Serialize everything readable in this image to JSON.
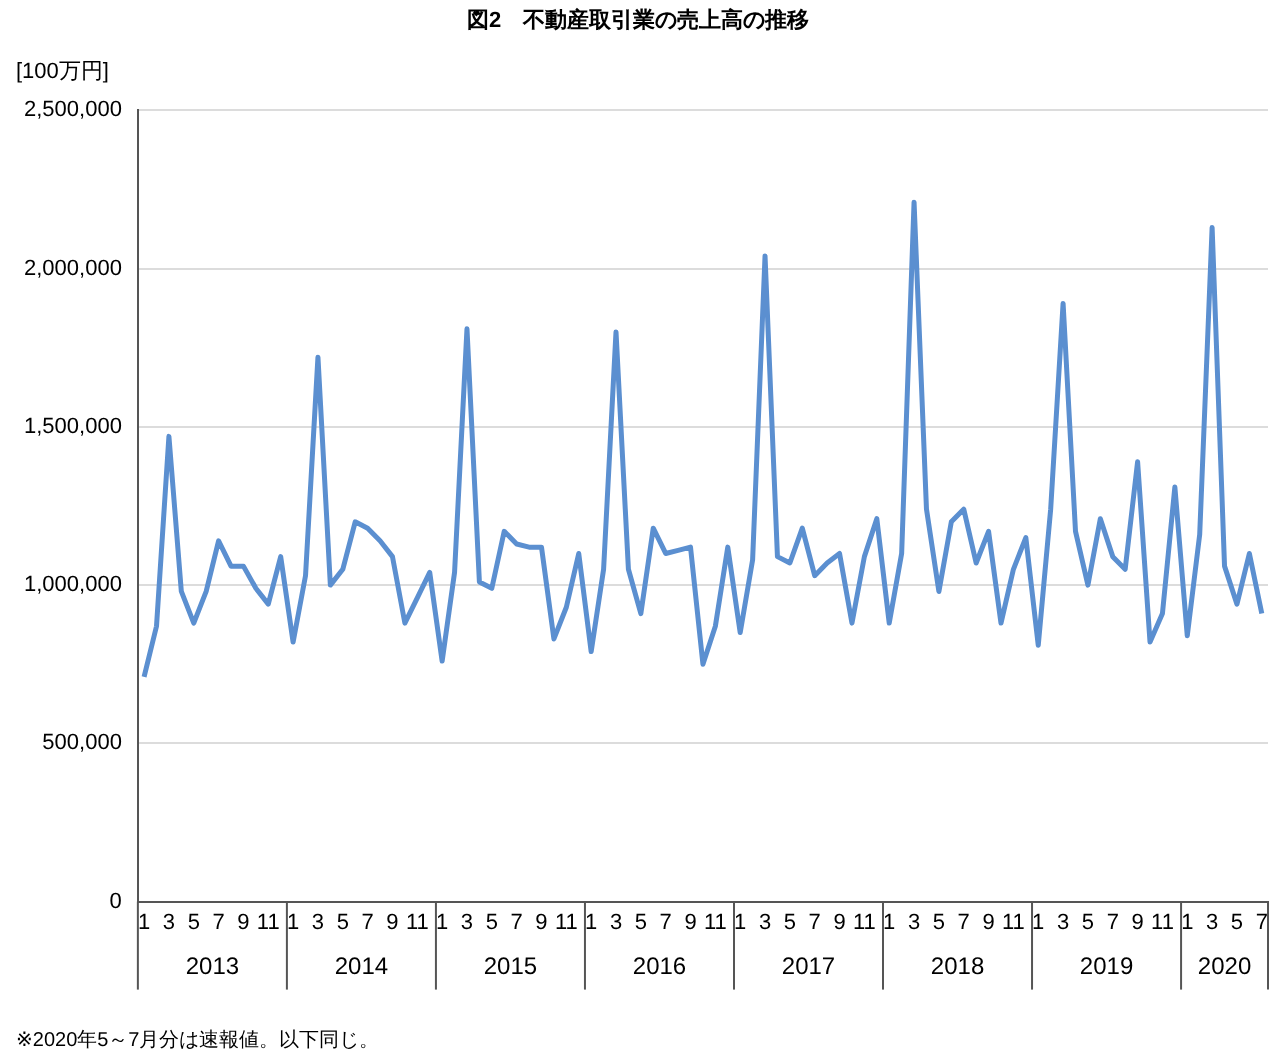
{
  "chart_data": {
    "type": "line",
    "title": "図2　不動産取引業の売上高の推移",
    "ylabel": "[100万円]",
    "categories": [
      "1",
      null,
      "3",
      null,
      "5",
      null,
      "7",
      null,
      "9",
      null,
      "11",
      null,
      "1",
      null,
      "3",
      null,
      "5",
      null,
      "7",
      null,
      "9",
      null,
      "11",
      null,
      "1",
      null,
      "3",
      null,
      "5",
      null,
      "7",
      null,
      "9",
      null,
      "11",
      null,
      "1",
      null,
      "3",
      null,
      "5",
      null,
      "7",
      null,
      "9",
      null,
      "11",
      null,
      "1",
      null,
      "3",
      null,
      "5",
      null,
      "7",
      null,
      "9",
      null,
      "11",
      null,
      "1",
      null,
      "3",
      null,
      "5",
      null,
      "7",
      null,
      "9",
      null,
      "11",
      null,
      "1",
      null,
      "3",
      null,
      "5",
      null,
      "7",
      null,
      "9",
      null,
      "11",
      null,
      "1",
      null,
      "3",
      null,
      "5",
      null,
      "7"
    ],
    "series": [
      {
        "color": "#5b8fd0",
        "values": [
          710000,
          870000,
          1470000,
          980000,
          880000,
          980000,
          1140000,
          1060000,
          1060000,
          990000,
          940000,
          1090000,
          820000,
          1030000,
          1720000,
          1000000,
          1050000,
          1200000,
          1180000,
          1140000,
          1090000,
          880000,
          960000,
          1040000,
          760000,
          1040000,
          1810000,
          1010000,
          990000,
          1170000,
          1130000,
          1120000,
          1120000,
          830000,
          930000,
          1100000,
          790000,
          1050000,
          1800000,
          1050000,
          910000,
          1180000,
          1100000,
          1110000,
          1120000,
          750000,
          870000,
          1120000,
          850000,
          1080000,
          2040000,
          1090000,
          1070000,
          1180000,
          1030000,
          1070000,
          1100000,
          880000,
          1090000,
          1210000,
          880000,
          1100000,
          2210000,
          1240000,
          980000,
          1200000,
          1240000,
          1070000,
          1170000,
          880000,
          1050000,
          1150000,
          810000,
          1240000,
          1890000,
          1170000,
          1000000,
          1210000,
          1090000,
          1050000,
          1390000,
          820000,
          910000,
          1310000,
          840000,
          1160000,
          2130000,
          1060000,
          940000,
          1100000,
          910000
        ]
      }
    ],
    "ylim": [
      0,
      2500000
    ],
    "yticks": [
      0,
      {
        "value": 500000,
        "label": "500,000"
      },
      {
        "value": 1000000,
        "label": "1,000,000"
      },
      {
        "value": 1500000,
        "label": "1,500,000"
      },
      {
        "value": 2000000,
        "label": "2,000,000"
      },
      {
        "value": 2500000,
        "label": "2,500,000"
      }
    ],
    "grid": "y",
    "legend": false,
    "marker": "none",
    "line_style": "solid",
    "annotations": [
      "※2020年5～7月分は速報値。以下同じ。",
      "2013",
      "2014",
      "2015",
      "2016",
      "2017",
      "2018",
      "2019",
      "2020"
    ]
  }
}
